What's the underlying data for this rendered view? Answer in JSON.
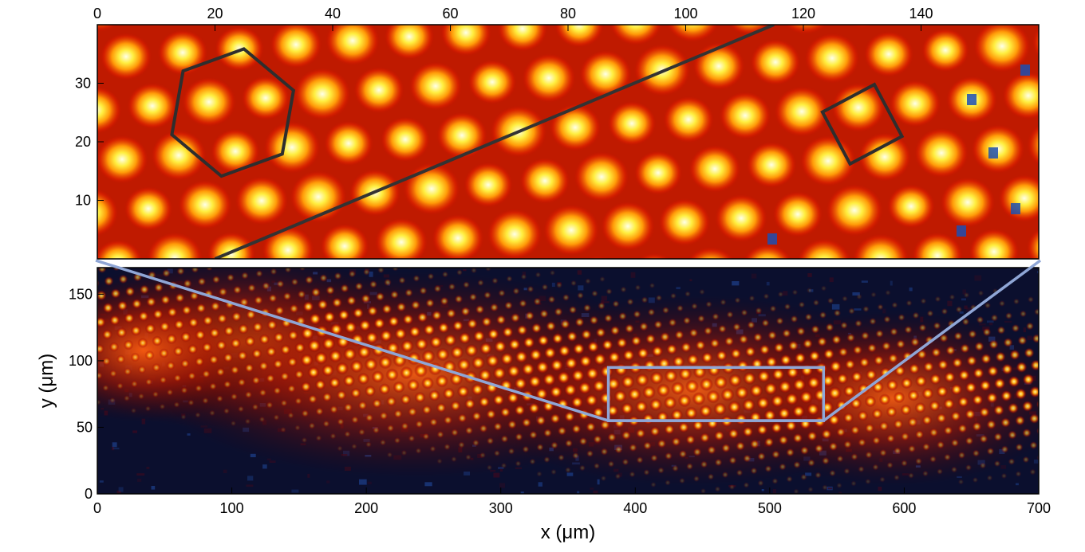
{
  "chart_data": [
    {
      "type": "heatmap",
      "title": "",
      "xlabel": "",
      "ylabel": "",
      "xlim": [
        0,
        160
      ],
      "ylim": [
        0,
        40
      ],
      "x_ticks": [
        0,
        20,
        40,
        60,
        80,
        100,
        120,
        140
      ],
      "y_ticks": [
        10,
        20,
        30
      ],
      "x_axis_position": "top",
      "colormap": "hot",
      "annotations": [
        {
          "shape": "hexagon",
          "center": [
            23,
            25
          ],
          "radius": 11
        },
        {
          "shape": "square",
          "center": [
            130,
            23
          ],
          "side": 10,
          "rotation_deg": 28
        },
        {
          "shape": "line",
          "from": [
            20,
            0
          ],
          "to": [
            115,
            40
          ]
        }
      ]
    },
    {
      "type": "heatmap",
      "title": "",
      "xlabel": "x (μm)",
      "ylabel": "y (μm)",
      "xlim": [
        0,
        700
      ],
      "ylim": [
        0,
        170
      ],
      "x_ticks": [
        0,
        100,
        200,
        300,
        400,
        500,
        600,
        700
      ],
      "y_ticks": [
        0,
        50,
        100,
        150
      ],
      "colormap": "hot",
      "zoom_region": {
        "x": [
          380,
          540
        ],
        "y": [
          55,
          95
        ]
      },
      "annotations": [
        {
          "shape": "polyline",
          "points": [
            [
              0,
              175
            ],
            [
              380,
              55
            ],
            [
              540,
              55
            ],
            [
              700,
              175
            ]
          ]
        }
      ]
    }
  ]
}
